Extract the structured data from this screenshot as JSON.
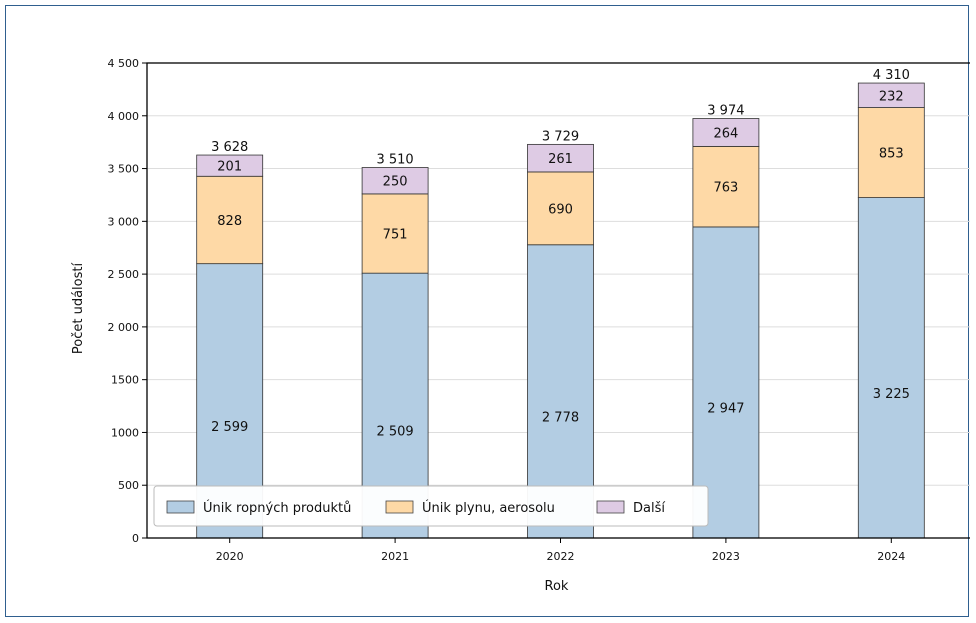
{
  "chart_data": {
    "type": "bar",
    "stacked": true,
    "title": "",
    "xlabel": "Rok",
    "ylabel": "Počet událostí",
    "ylim": [
      0,
      4500
    ],
    "yticks": [
      "0",
      "500",
      "1000",
      "1500",
      "2 000",
      "2 500",
      "3 000",
      "3 500",
      "4 000",
      "4 500"
    ],
    "categories": [
      "2020",
      "2021",
      "2022",
      "2023",
      "2024"
    ],
    "series": [
      {
        "name": "Únik ropných produktů",
        "color": "#b3cde3",
        "values": [
          2599,
          2509,
          2778,
          2947,
          3225
        ],
        "labels": [
          "2 599",
          "2 509",
          "2 778",
          "2 947",
          "3 225"
        ]
      },
      {
        "name": "Únik plynu, aerosolu",
        "color": "#fed9a6",
        "values": [
          828,
          751,
          690,
          763,
          853
        ],
        "labels": [
          "828",
          "751",
          "690",
          "763",
          "853"
        ]
      },
      {
        "name": "Další",
        "color": "#decbe4",
        "values": [
          201,
          250,
          261,
          264,
          232
        ],
        "labels": [
          "201",
          "250",
          "261",
          "264",
          "232"
        ]
      }
    ],
    "totals": [
      3628,
      3510,
      3729,
      3974,
      4310
    ],
    "total_labels": [
      "3 628",
      "3 510",
      "3 729",
      "3 974",
      "4 310"
    ],
    "grid": true,
    "legend_position": "bottom-left"
  }
}
